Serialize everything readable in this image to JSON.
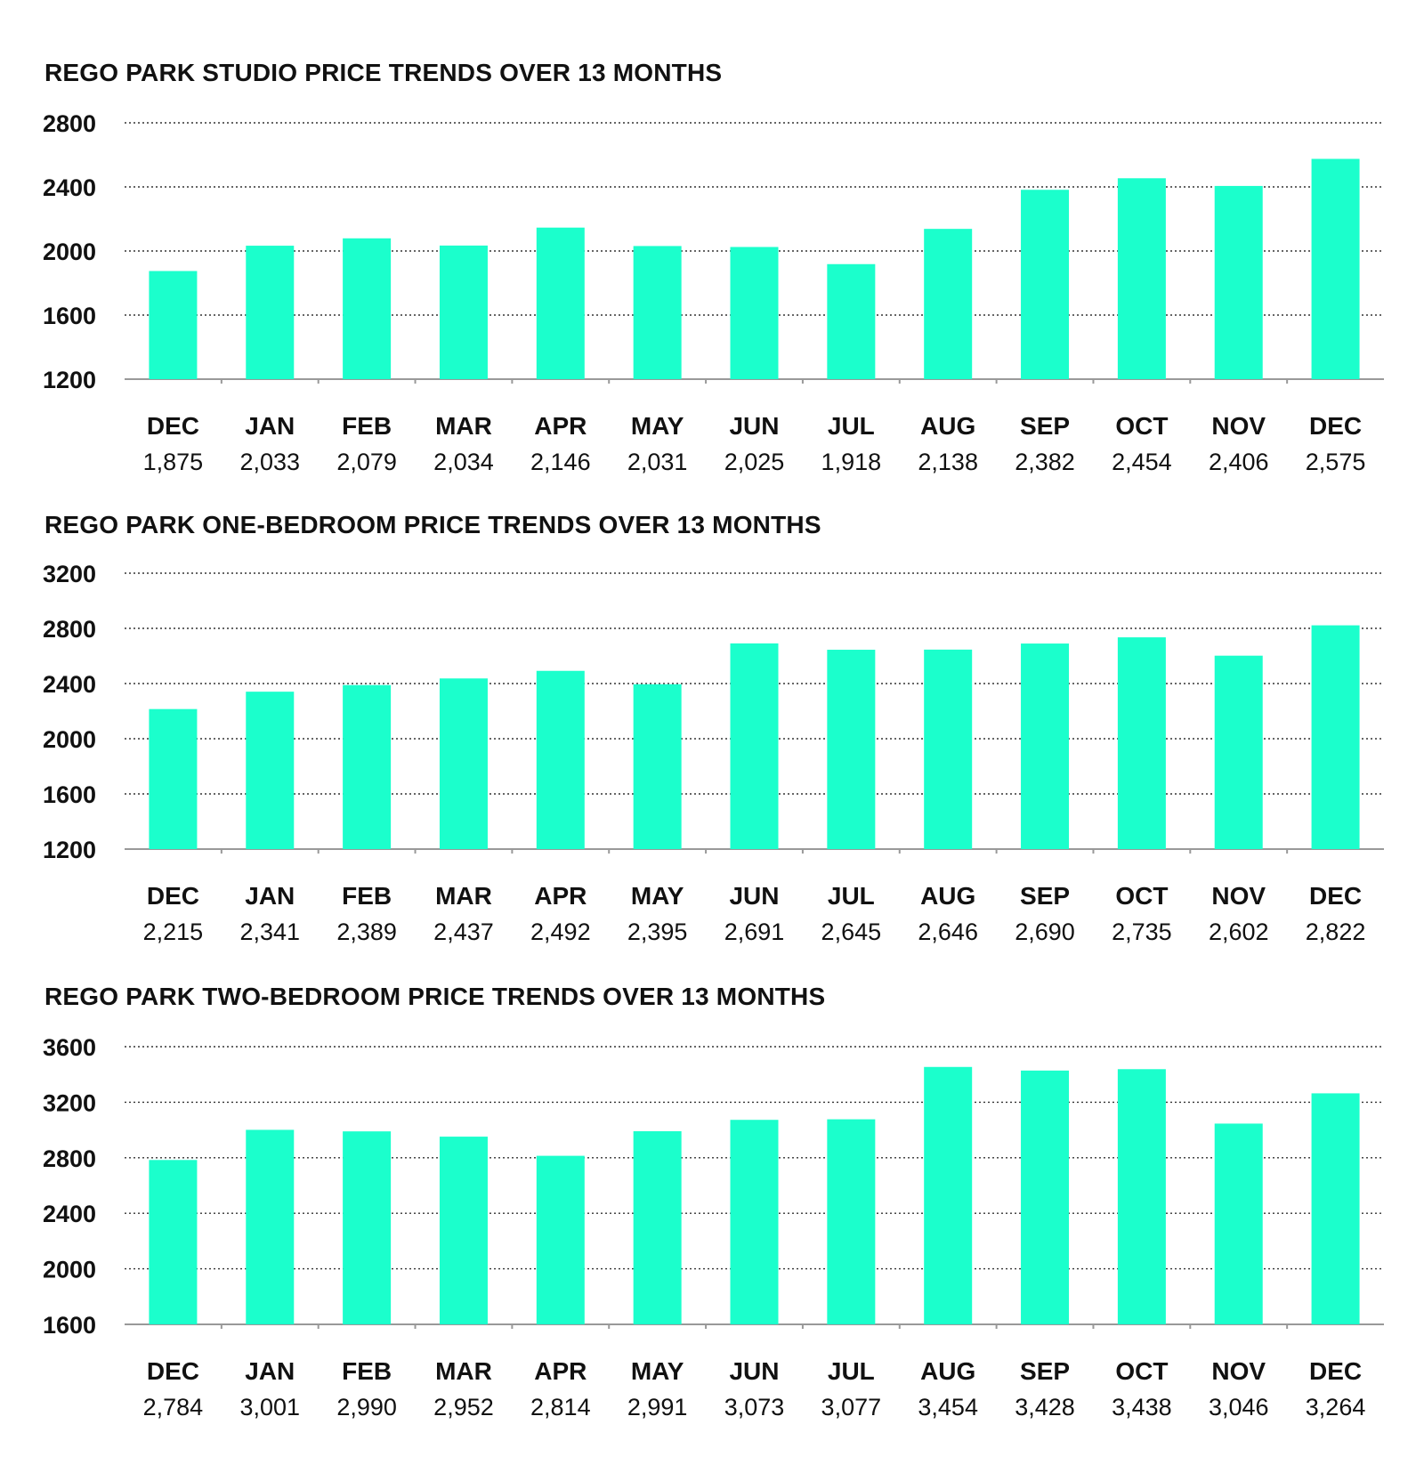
{
  "colors": {
    "bar": "#1bffcc",
    "grid": "#333333",
    "axis": "#999999",
    "text": "#111111"
  },
  "chart_data": [
    {
      "type": "bar",
      "title": "REGO PARK STUDIO PRICE TRENDS OVER 13 MONTHS",
      "categories": [
        "DEC",
        "JAN",
        "FEB",
        "MAR",
        "APR",
        "MAY",
        "JUN",
        "JUL",
        "AUG",
        "SEP",
        "OCT",
        "NOV",
        "DEC"
      ],
      "values": [
        1875,
        2033,
        2079,
        2034,
        2146,
        2031,
        2025,
        1918,
        2138,
        2382,
        2454,
        2406,
        2575
      ],
      "value_labels": [
        "1,875",
        "2,033",
        "2,079",
        "2,034",
        "2,146",
        "2,031",
        "2,025",
        "1,918",
        "2,138",
        "2,382",
        "2,454",
        "2,406",
        "2,575"
      ],
      "yticks": [
        "1200",
        "1600",
        "2000",
        "2400",
        "2800"
      ],
      "ylim": [
        1200,
        2800
      ],
      "grid": true
    },
    {
      "type": "bar",
      "title": "REGO PARK ONE-BEDROOM PRICE TRENDS OVER 13 MONTHS",
      "categories": [
        "DEC",
        "JAN",
        "FEB",
        "MAR",
        "APR",
        "MAY",
        "JUN",
        "JUL",
        "AUG",
        "SEP",
        "OCT",
        "NOV",
        "DEC"
      ],
      "values": [
        2215,
        2341,
        2389,
        2437,
        2492,
        2395,
        2691,
        2645,
        2646,
        2690,
        2735,
        2602,
        2822
      ],
      "value_labels": [
        "2,215",
        "2,341",
        "2,389",
        "2,437",
        "2,492",
        "2,395",
        "2,691",
        "2,645",
        "2,646",
        "2,690",
        "2,735",
        "2,602",
        "2,822"
      ],
      "yticks": [
        "1200",
        "1600",
        "2000",
        "2400",
        "2800",
        "3200"
      ],
      "ylim": [
        1200,
        3200
      ],
      "grid": true
    },
    {
      "type": "bar",
      "title": "REGO PARK TWO-BEDROOM PRICE TRENDS OVER 13 MONTHS",
      "categories": [
        "DEC",
        "JAN",
        "FEB",
        "MAR",
        "APR",
        "MAY",
        "JUN",
        "JUL",
        "AUG",
        "SEP",
        "OCT",
        "NOV",
        "DEC"
      ],
      "values": [
        2784,
        3001,
        2990,
        2952,
        2814,
        2991,
        3073,
        3077,
        3454,
        3428,
        3438,
        3046,
        3264
      ],
      "value_labels": [
        "2,784",
        "3,001",
        "2,990",
        "2,952",
        "2,814",
        "2,991",
        "3,073",
        "3,077",
        "3,454",
        "3,428",
        "3,438",
        "3,046",
        "3,264"
      ],
      "yticks": [
        "1600",
        "2000",
        "2400",
        "2800",
        "3200",
        "3600"
      ],
      "ylim": [
        1600,
        3600
      ],
      "grid": true
    }
  ]
}
